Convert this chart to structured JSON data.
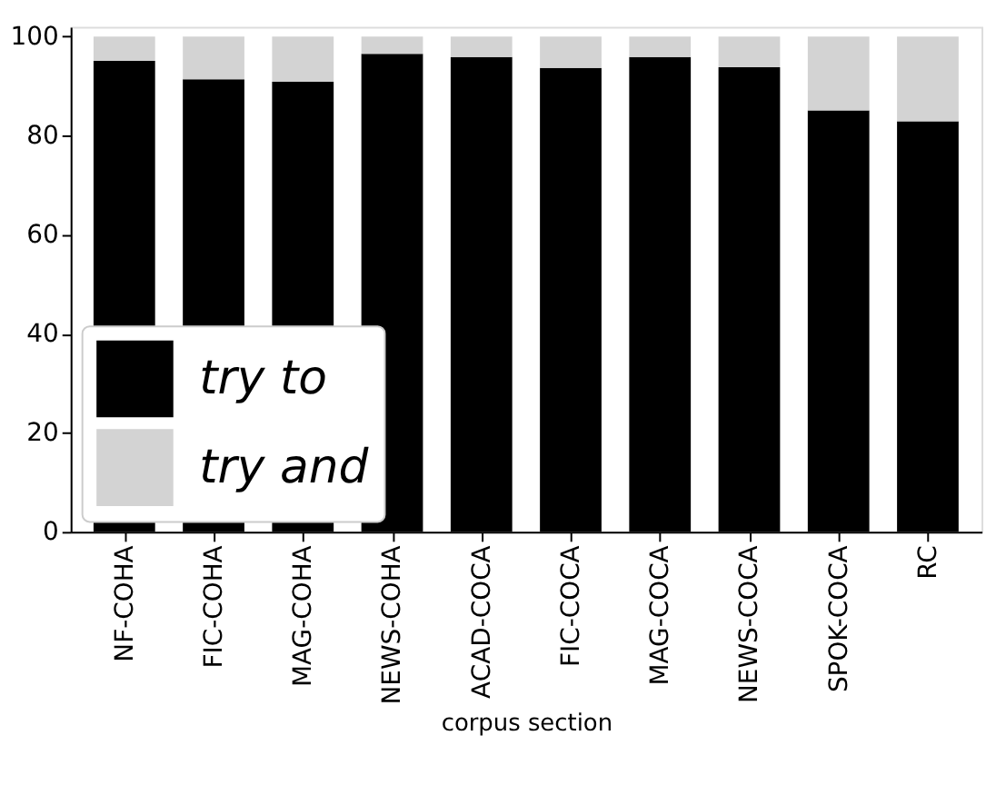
{
  "chart_data": {
    "type": "bar",
    "stacked": true,
    "xlabel": "corpus section",
    "categories": [
      "NF-COHA",
      "FIC-COHA",
      "MAG-COHA",
      "NEWS-COHA",
      "ACAD-COCA",
      "FIC-COCA",
      "MAG-COCA",
      "NEWS-COCA",
      "SPOK-COCA",
      "RC"
    ],
    "series": [
      {
        "name": "try to",
        "color": "#000000",
        "values": [
          95.1,
          91.4,
          90.9,
          96.5,
          95.9,
          93.7,
          95.9,
          93.8,
          85.1,
          82.9
        ]
      },
      {
        "name": "try and",
        "color": "#d3d3d3",
        "values": [
          4.9,
          8.6,
          9.1,
          3.5,
          4.1,
          6.3,
          4.1,
          6.2,
          14.9,
          17.1
        ]
      }
    ],
    "ylim": [
      0,
      102
    ],
    "yticks": [
      0,
      20,
      40,
      60,
      80,
      100
    ],
    "grid": false,
    "legend": "bottom left"
  }
}
